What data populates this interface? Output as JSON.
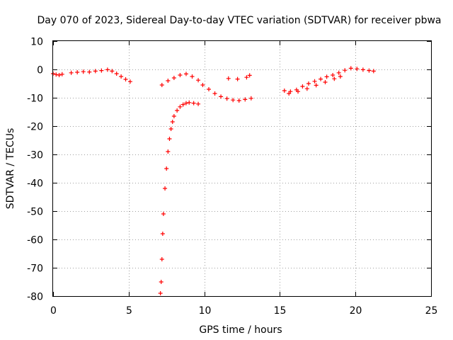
{
  "chart_data": {
    "type": "scatter",
    "title": "Day 070 of 2023, Sidereal Day-to-day VTEC variation (SDTVAR) for receiver pbwa",
    "xlabel": "GPS time / hours",
    "ylabel": "SDTVAR / TECUs",
    "xlim": [
      0,
      25
    ],
    "ylim": [
      -80,
      10
    ],
    "xticks": [
      0,
      5,
      10,
      15,
      20,
      25
    ],
    "yticks": [
      10,
      0,
      -10,
      -20,
      -30,
      -40,
      -50,
      -60,
      -70,
      -80
    ],
    "xtick_labels": [
      "0",
      "5",
      "10",
      "15",
      "20",
      "25"
    ],
    "ytick_labels": [
      "10",
      "0",
      "-10",
      "-20",
      "-30",
      "-40",
      "-50",
      "-60",
      "-70",
      "-80"
    ],
    "grid": true,
    "marker": "+",
    "series": [
      {
        "name": "SDTVAR",
        "color": "#ff0000",
        "x": [
          0.0,
          0.2,
          0.4,
          0.6,
          1.2,
          1.6,
          2.0,
          2.4,
          2.8,
          3.2,
          3.6,
          3.9,
          4.2,
          4.5,
          4.8,
          5.1,
          7.2,
          7.6,
          8.0,
          8.4,
          8.8,
          9.2,
          9.6,
          9.9,
          10.3,
          10.7,
          11.1,
          11.5,
          11.9,
          12.3,
          12.7,
          13.1,
          11.6,
          12.2,
          12.8,
          13.0,
          15.3,
          15.7,
          16.1,
          16.5,
          16.9,
          17.3,
          17.7,
          18.1,
          18.5,
          18.9,
          19.3,
          19.7,
          20.1,
          20.5,
          20.9,
          21.2,
          15.6,
          16.2,
          16.8,
          17.4,
          18.0,
          18.6,
          19.0,
          7.1,
          7.15,
          7.2,
          7.25,
          7.3,
          7.4,
          7.5,
          7.6,
          7.7,
          7.8,
          7.9,
          8.0,
          8.2,
          8.4,
          8.6,
          8.8,
          9.0,
          9.3,
          9.6
        ],
        "y": [
          -1.5,
          -1.8,
          -2.0,
          -1.7,
          -1.2,
          -1.0,
          -0.8,
          -0.9,
          -0.6,
          -0.4,
          -0.1,
          -0.6,
          -1.5,
          -2.5,
          -3.5,
          -4.3,
          -5.5,
          -4.0,
          -3.0,
          -2.0,
          -1.6,
          -2.5,
          -3.8,
          -5.5,
          -7.0,
          -8.5,
          -9.6,
          -10.3,
          -10.8,
          -11.0,
          -10.6,
          -10.2,
          -3.2,
          -3.4,
          -2.8,
          -2.1,
          -7.5,
          -7.8,
          -7.2,
          -6.0,
          -5.0,
          -4.2,
          -3.4,
          -2.6,
          -2.0,
          -1.2,
          -0.3,
          0.4,
          0.2,
          -0.1,
          -0.4,
          -0.6,
          -8.5,
          -7.8,
          -6.8,
          -5.6,
          -4.5,
          -3.3,
          -2.5,
          -79.0,
          -75.0,
          -67.0,
          -58.0,
          -51.0,
          -42.0,
          -35.0,
          -29.0,
          -24.5,
          -21.0,
          -18.5,
          -16.5,
          -14.5,
          -13.2,
          -12.4,
          -11.9,
          -11.7,
          -11.9,
          -12.2
        ]
      }
    ]
  }
}
